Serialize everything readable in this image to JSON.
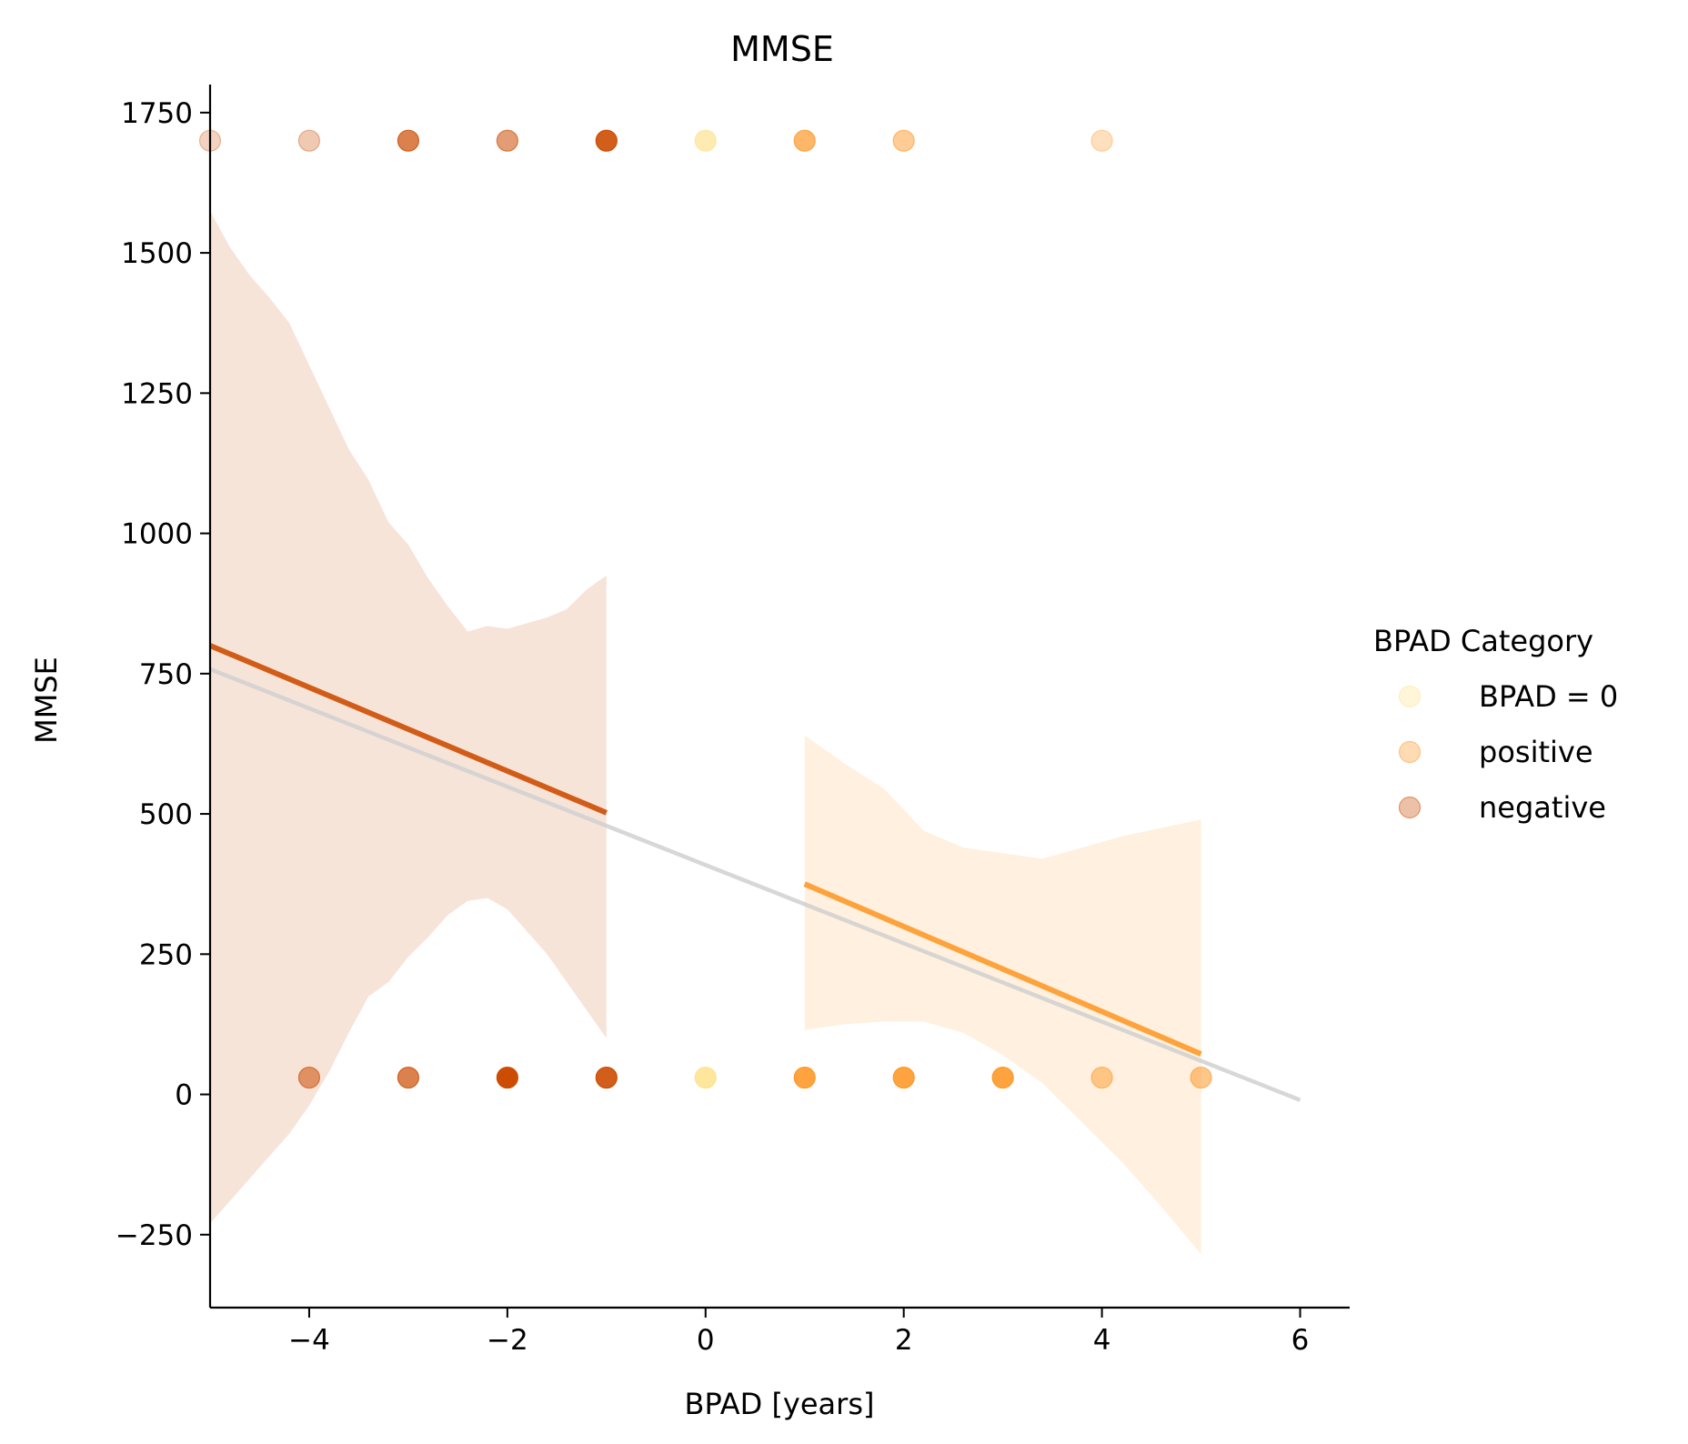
{
  "chart_data": {
    "type": "scatter",
    "title": "MMSE",
    "xlabel": "BPAD [years]",
    "ylabel": "MMSE",
    "xlim": [
      -5,
      6.5
    ],
    "ylim": [
      -380,
      1800
    ],
    "xticks": [
      -4,
      -2,
      0,
      2,
      4,
      6
    ],
    "xtick_labels": [
      "−4",
      "−2",
      "0",
      "2",
      "4",
      "6"
    ],
    "yticks": [
      -250,
      0,
      250,
      500,
      750,
      1000,
      1250,
      1500,
      1750
    ],
    "ytick_labels": [
      "−250",
      "0",
      "250",
      "500",
      "750",
      "1000",
      "1250",
      "1500",
      "1750"
    ],
    "grid": false,
    "legend": {
      "title": "BPAD Category",
      "placement": "center-right outside",
      "entries": [
        {
          "label": "BPAD = 0",
          "color": "#fee391"
        },
        {
          "label": "positive",
          "color": "#fe9929"
        },
        {
          "label": "negative",
          "color": "#cc4c02"
        }
      ]
    },
    "series": [
      {
        "name": "negative",
        "color": "#cc4c02",
        "points": [
          {
            "x": -5,
            "y": 1700,
            "alpha": 0.25
          },
          {
            "x": -4,
            "y": 1700,
            "alpha": 0.3
          },
          {
            "x": -3,
            "y": 1700,
            "alpha": 0.7
          },
          {
            "x": -2,
            "y": 1700,
            "alpha": 0.55
          },
          {
            "x": -1,
            "y": 1700,
            "alpha": 0.9
          },
          {
            "x": -4,
            "y": 30,
            "alpha": 0.55
          },
          {
            "x": -3,
            "y": 30,
            "alpha": 0.7
          },
          {
            "x": -2,
            "y": 30,
            "alpha": 1.0
          },
          {
            "x": -1,
            "y": 30,
            "alpha": 0.9
          }
        ],
        "fit": {
          "x": [
            -5,
            -1
          ],
          "y": [
            800,
            502
          ]
        },
        "ci": {
          "x": [
            -5,
            -4.8,
            -4.6,
            -4.4,
            -4.2,
            -4,
            -3.8,
            -3.6,
            -3.4,
            -3.2,
            -3,
            -2.8,
            -2.6,
            -2.4,
            -2.2,
            -2,
            -1.8,
            -1.6,
            -1.4,
            -1.2,
            -1
          ],
          "upper": [
            1575,
            1510,
            1460,
            1420,
            1375,
            1300,
            1225,
            1150,
            1095,
            1020,
            980,
            920,
            870,
            825,
            835,
            830,
            840,
            850,
            865,
            900,
            925
          ],
          "lower": [
            -230,
            -190,
            -150,
            -110,
            -70,
            -20,
            40,
            110,
            175,
            200,
            245,
            280,
            320,
            345,
            350,
            330,
            290,
            250,
            200,
            150,
            100
          ]
        }
      },
      {
        "name": "positive",
        "color": "#fe9929",
        "points": [
          {
            "x": 1,
            "y": 1700,
            "alpha": 0.7
          },
          {
            "x": 2,
            "y": 1700,
            "alpha": 0.5
          },
          {
            "x": 4,
            "y": 1700,
            "alpha": 0.3
          },
          {
            "x": 1,
            "y": 30,
            "alpha": 0.9
          },
          {
            "x": 2,
            "y": 30,
            "alpha": 0.9
          },
          {
            "x": 3,
            "y": 30,
            "alpha": 0.9
          },
          {
            "x": 4,
            "y": 30,
            "alpha": 0.5
          },
          {
            "x": 5,
            "y": 30,
            "alpha": 0.55
          }
        ],
        "fit": {
          "x": [
            1,
            5
          ],
          "y": [
            375,
            72
          ]
        },
        "ci": {
          "x": [
            1,
            1.4,
            1.8,
            2.2,
            2.6,
            3,
            3.4,
            3.8,
            4.2,
            4.6,
            5
          ],
          "upper": [
            640,
            590,
            545,
            470,
            440,
            430,
            420,
            440,
            460,
            475,
            490
          ],
          "lower": [
            115,
            125,
            130,
            130,
            110,
            70,
            20,
            -50,
            -120,
            -200,
            -285
          ]
        }
      },
      {
        "name": "BPAD = 0",
        "color": "#fee391",
        "points": [
          {
            "x": 0,
            "y": 1700,
            "alpha": 0.7
          },
          {
            "x": 0,
            "y": 30,
            "alpha": 0.9
          }
        ]
      }
    ],
    "overall_fit": {
      "name": "overall",
      "color": "#d0d0d0",
      "x": [
        -5,
        6
      ],
      "y": [
        758,
        -10
      ]
    }
  }
}
